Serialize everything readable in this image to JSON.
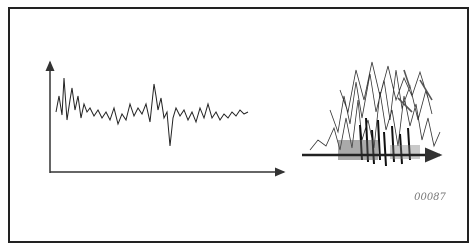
{
  "caption": "00087"
}
